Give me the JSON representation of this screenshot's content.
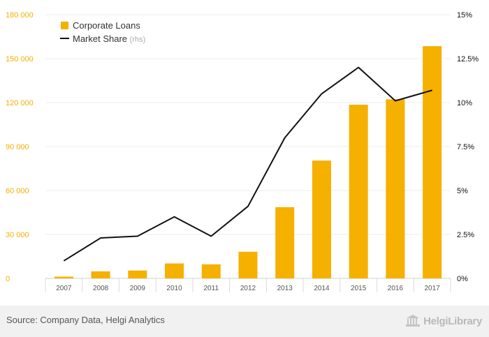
{
  "chart_data": {
    "type": "bar",
    "categories": [
      "2007",
      "2008",
      "2009",
      "2010",
      "2011",
      "2012",
      "2013",
      "2014",
      "2015",
      "2016",
      "2017"
    ],
    "series": [
      {
        "name": "Corporate Loans",
        "type": "bar",
        "axis": "left",
        "color": "#f5b000",
        "values": [
          1200,
          4800,
          5400,
          10200,
          9600,
          18200,
          48600,
          80400,
          118500,
          122200,
          158500
        ]
      },
      {
        "name": "Market Share",
        "name_suffix": "(rhs)",
        "type": "line",
        "axis": "right",
        "color": "#111111",
        "values": [
          1.0,
          2.3,
          2.4,
          3.5,
          2.4,
          4.1,
          8.0,
          10.5,
          12.0,
          10.1,
          10.7
        ]
      }
    ],
    "y_left": {
      "min": 0,
      "max": 180000,
      "ticks": [
        0,
        30000,
        60000,
        90000,
        120000,
        150000,
        180000
      ],
      "tick_labels": [
        "0",
        "30 000",
        "60 000",
        "90 000",
        "120 000",
        "150 000",
        "180 000"
      ],
      "color": "#f5b000"
    },
    "y_right": {
      "min": 0,
      "max": 15,
      "ticks": [
        0,
        2.5,
        5,
        7.5,
        10,
        12.5,
        15
      ],
      "tick_labels": [
        "0%",
        "2.5%",
        "5%",
        "7.5%",
        "10%",
        "12.5%",
        "15%"
      ],
      "color": "#111111"
    },
    "grid": true,
    "legend_position": "top-left"
  },
  "footer": {
    "source": "Source: Company Data, Helgi Analytics",
    "logo": "HelgiLibrary"
  }
}
